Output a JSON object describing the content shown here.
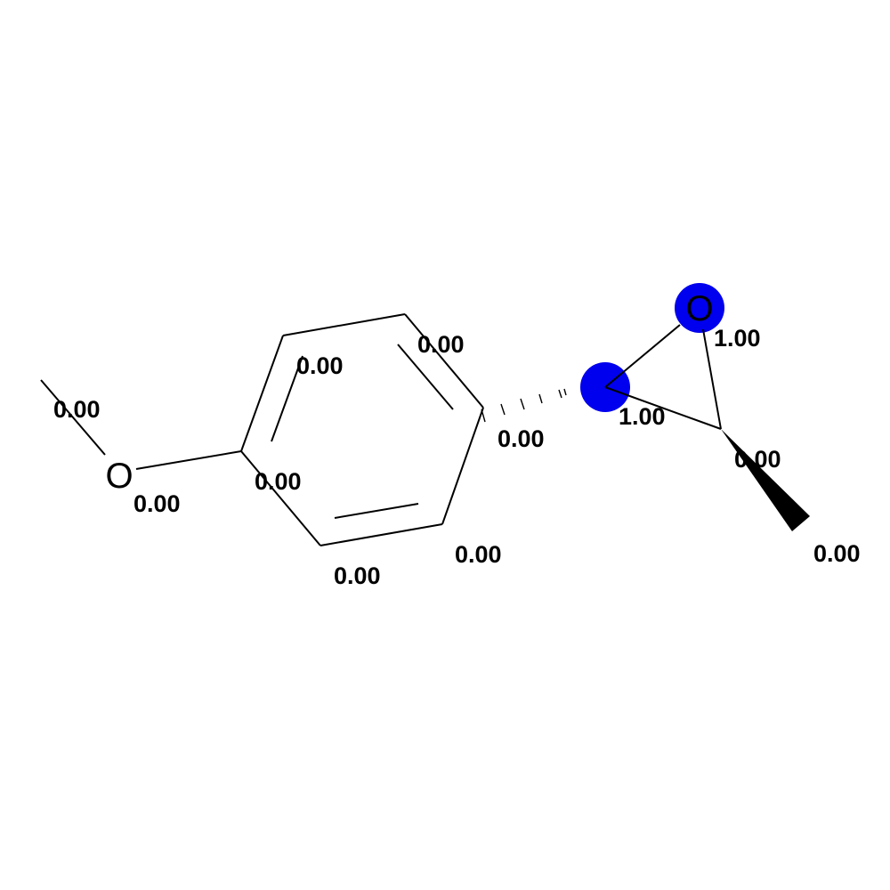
{
  "molecule": {
    "highlight_color": "#0000EE",
    "bond_color": "#000000",
    "atoms": [
      {
        "id": "methyl_C",
        "element": "C",
        "weight": "0.00"
      },
      {
        "id": "ether_O",
        "element": "O",
        "symbol": "O",
        "weight": "0.00"
      },
      {
        "id": "ring_C1",
        "element": "C",
        "weight": "0.00"
      },
      {
        "id": "ring_C2",
        "element": "C",
        "weight": "0.00"
      },
      {
        "id": "ring_C3",
        "element": "C",
        "weight": "0.00"
      },
      {
        "id": "ring_C4",
        "element": "C",
        "weight": "0.00"
      },
      {
        "id": "ring_C5",
        "element": "C",
        "weight": "0.00"
      },
      {
        "id": "ring_C6",
        "element": "C",
        "weight": "0.00"
      },
      {
        "id": "epoxide_C1",
        "element": "C",
        "weight": "1.00",
        "highlighted": true
      },
      {
        "id": "epoxide_O",
        "element": "O",
        "symbol": "O",
        "weight": "1.00",
        "highlighted": true
      },
      {
        "id": "epoxide_C2",
        "element": "C",
        "weight": "0.00"
      },
      {
        "id": "terminal_methyl_C",
        "element": "C",
        "weight": "0.00"
      }
    ]
  }
}
